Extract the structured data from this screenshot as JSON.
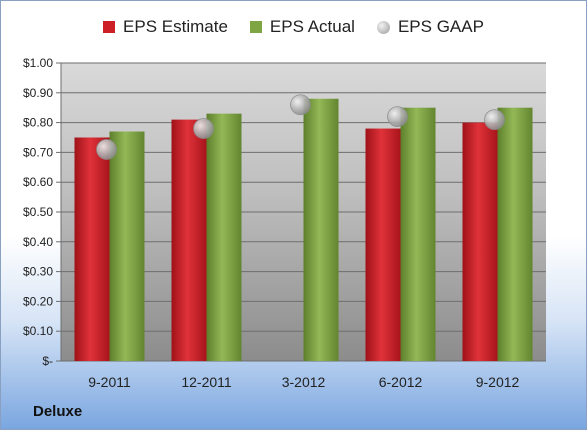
{
  "company": "Deluxe",
  "chart_data": {
    "type": "bar",
    "categories": [
      "9-2011",
      "12-2011",
      "3-2012",
      "6-2012",
      "9-2012"
    ],
    "series": [
      {
        "name": "EPS Estimate",
        "type": "bar",
        "color": "#cc1f26",
        "values": [
          0.75,
          0.81,
          null,
          0.78,
          0.8
        ]
      },
      {
        "name": "EPS Actual",
        "type": "bar",
        "color": "#7fa443",
        "values": [
          0.77,
          0.83,
          0.88,
          0.85,
          0.85
        ]
      },
      {
        "name": "EPS GAAP",
        "type": "bubble",
        "color": "#b9b9b9",
        "values": [
          0.71,
          0.78,
          0.86,
          0.82,
          0.81
        ]
      }
    ],
    "ylim": [
      0,
      1.0
    ],
    "yticks": [
      0,
      0.1,
      0.2,
      0.3,
      0.4,
      0.5,
      0.6,
      0.7,
      0.8,
      0.9,
      1.0
    ],
    "ytick_labels": [
      "$-",
      "$0.10",
      "$0.20",
      "$0.30",
      "$0.40",
      "$0.50",
      "$0.60",
      "$0.70",
      "$0.80",
      "$0.90",
      "$1.00"
    ],
    "grid": true,
    "legend": "top"
  }
}
